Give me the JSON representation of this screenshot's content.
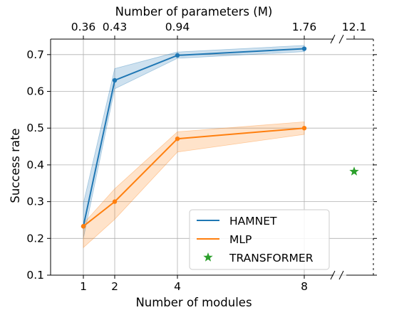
{
  "chart_data": {
    "type": "line",
    "xlabel": "Number of modules",
    "ylabel": "Success rate",
    "top_xlabel": "Number of parameters (M)",
    "x": [
      1,
      2,
      4,
      8
    ],
    "xticks": [
      "1",
      "2",
      "4",
      "8"
    ],
    "top_xticks": [
      "0.36",
      "0.43",
      "0.94",
      "1.76",
      "12.1"
    ],
    "ylim": [
      0.1,
      0.75
    ],
    "yticks": [
      "0.1",
      "0.2",
      "0.3",
      "0.4",
      "0.5",
      "0.6",
      "0.7"
    ],
    "grid": true,
    "legend_position": "lower-right",
    "series": [
      {
        "name": "HAMNET",
        "color": "#1f77b4",
        "values": [
          0.233,
          0.63,
          0.698,
          0.716
        ],
        "band_low": [
          0.2,
          0.607,
          0.69,
          0.708
        ],
        "band_high": [
          0.295,
          0.662,
          0.707,
          0.725
        ]
      },
      {
        "name": "MLP",
        "color": "#ff7f0e",
        "values": [
          0.233,
          0.3,
          0.471,
          0.5
        ],
        "band_low": [
          0.175,
          0.252,
          0.435,
          0.483
        ],
        "band_high": [
          0.24,
          0.335,
          0.49,
          0.517
        ]
      }
    ],
    "extra_points": [
      {
        "name": "TRANSFORMER",
        "value": 0.382,
        "color": "#2ca02c",
        "marker": "star"
      }
    ]
  }
}
